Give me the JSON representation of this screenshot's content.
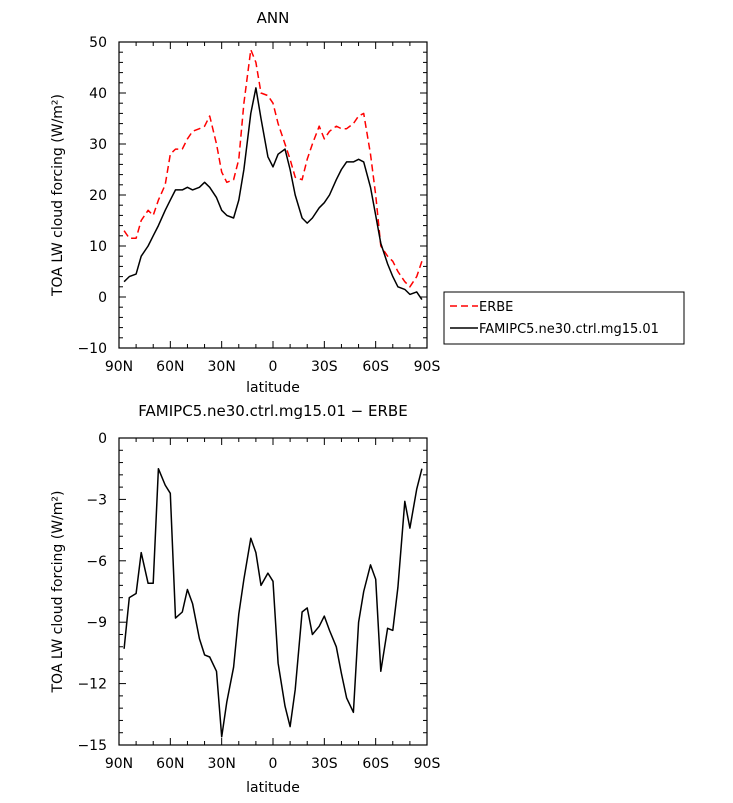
{
  "chart_data": [
    {
      "type": "line",
      "title": "ANN",
      "xlabel": "latitude",
      "ylabel": "TOA LW cloud forcing (W/m²)",
      "xlim": [
        90,
        -90
      ],
      "ylim": [
        -10,
        50
      ],
      "x_ticks": [
        90,
        60,
        30,
        0,
        -30,
        -60,
        -90
      ],
      "x_tick_labels": [
        "90N",
        "60N",
        "30N",
        "0",
        "30S",
        "60S",
        "90S"
      ],
      "y_ticks": [
        -10,
        0,
        10,
        20,
        30,
        40,
        50
      ],
      "y_tick_labels": [
        "−10",
        "0",
        "10",
        "20",
        "30",
        "40",
        "50"
      ],
      "grid": false,
      "legend_position": "outside-right",
      "series": [
        {
          "name": "ERBE",
          "color": "#ff0000",
          "style": "dashed",
          "x": [
            87,
            84,
            80,
            77,
            73,
            70,
            67,
            63,
            60,
            57,
            53,
            50,
            47,
            43,
            40,
            37,
            33,
            30,
            27,
            23,
            20,
            17,
            13,
            10,
            7,
            3,
            0,
            -3,
            -7,
            -10,
            -13,
            -17,
            -20,
            -23,
            -27,
            -30,
            -33,
            -37,
            -40,
            -43,
            -47,
            -50,
            -53,
            -57,
            -60,
            -63,
            -67,
            -70,
            -73,
            -77,
            -80,
            -84,
            -87
          ],
          "y": [
            13,
            11.5,
            11.5,
            15,
            17,
            16,
            19,
            22,
            28,
            29,
            29,
            31,
            32.5,
            33,
            33.5,
            35.5,
            30,
            24.5,
            22.5,
            23,
            27,
            38,
            48.5,
            46,
            40,
            39.5,
            38,
            34,
            30,
            27,
            23.5,
            23,
            27,
            30,
            33.5,
            31,
            32.5,
            33.5,
            33,
            33,
            34,
            35.5,
            36,
            28,
            20,
            10,
            8,
            7,
            5,
            3,
            2,
            4,
            7
          ]
        },
        {
          "name": "FAMIPC5.ne30.ctrl.mg15.01",
          "color": "#000000",
          "style": "solid",
          "x": [
            87,
            84,
            80,
            77,
            73,
            70,
            67,
            63,
            60,
            57,
            53,
            50,
            47,
            43,
            40,
            37,
            33,
            30,
            27,
            23,
            20,
            17,
            13,
            10,
            7,
            3,
            0,
            -3,
            -7,
            -10,
            -13,
            -17,
            -20,
            -23,
            -27,
            -30,
            -33,
            -37,
            -40,
            -43,
            -47,
            -50,
            -53,
            -57,
            -60,
            -63,
            -67,
            -70,
            -73,
            -77,
            -80,
            -84,
            -87
          ],
          "y": [
            3,
            4,
            4.5,
            8,
            10,
            12,
            14,
            17,
            19,
            21,
            21,
            21.5,
            21,
            21.5,
            22.5,
            21.5,
            19.5,
            17,
            16,
            15.5,
            19,
            25,
            36,
            41,
            35,
            27.5,
            25.5,
            28,
            29,
            25,
            20,
            15.5,
            14.5,
            15.5,
            17.5,
            18.5,
            20,
            23,
            25,
            26.5,
            26.5,
            27,
            26.5,
            21.5,
            16,
            10.5,
            6.5,
            4,
            2,
            1.5,
            0.5,
            1,
            -0.5
          ]
        }
      ]
    },
    {
      "type": "line",
      "title": "FAMIPC5.ne30.ctrl.mg15.01 − ERBE",
      "xlabel": "latitude",
      "ylabel": "TOA LW cloud forcing (W/m²)",
      "xlim": [
        90,
        -90
      ],
      "ylim": [
        -15,
        0
      ],
      "x_ticks": [
        90,
        60,
        30,
        0,
        -30,
        -60,
        -90
      ],
      "x_tick_labels": [
        "90N",
        "60N",
        "30N",
        "0",
        "30S",
        "60S",
        "90S"
      ],
      "y_ticks": [
        -15,
        -12,
        -9,
        -6,
        -3,
        0
      ],
      "y_tick_labels": [
        "−15",
        "−12",
        "−9",
        "−6",
        "−3",
        "0"
      ],
      "grid": false,
      "series": [
        {
          "color": "#000000",
          "style": "solid",
          "x": [
            87,
            84,
            80,
            77,
            73,
            70,
            67,
            63,
            60,
            57,
            53,
            50,
            47,
            43,
            40,
            37,
            33,
            30,
            27,
            23,
            20,
            17,
            13,
            10,
            7,
            3,
            0,
            -3,
            -7,
            -10,
            -13,
            -17,
            -20,
            -23,
            -27,
            -30,
            -33,
            -37,
            -40,
            -43,
            -47,
            -50,
            -53,
            -57,
            -60,
            -63,
            -67,
            -70,
            -73,
            -77,
            -80,
            -84,
            -87
          ],
          "y": [
            -10.3,
            -7.8,
            -7.6,
            -5.6,
            -7.1,
            -7.1,
            -1.5,
            -2.3,
            -2.7,
            -8.8,
            -8.5,
            -7.4,
            -8.1,
            -9.8,
            -10.6,
            -10.7,
            -11.4,
            -14.6,
            -12.9,
            -11.2,
            -8.6,
            -6.9,
            -4.9,
            -5.6,
            -7.2,
            -6.6,
            -7.0,
            -11.0,
            -13.1,
            -14.1,
            -12.3,
            -8.5,
            -8.3,
            -9.6,
            -9.2,
            -8.7,
            -9.4,
            -10.2,
            -11.5,
            -12.7,
            -13.4,
            -9.0,
            -7.5,
            -6.2,
            -6.9,
            -11.4,
            -9.3,
            -9.4,
            -7.3,
            -3.1,
            -4.4,
            -2.5,
            -1.5
          ]
        }
      ]
    }
  ]
}
